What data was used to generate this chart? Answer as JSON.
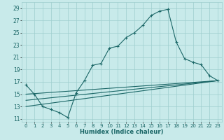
{
  "xlabel": "Humidex (Indice chaleur)",
  "bg_color": "#c8eaea",
  "grid_color": "#9ecece",
  "line_color": "#1a6666",
  "xlim": [
    -0.5,
    23.5
  ],
  "ylim": [
    10.5,
    30
  ],
  "xtick_labels": [
    "0",
    "1",
    "2",
    "3",
    "4",
    "5",
    "6",
    "7",
    "8",
    "9",
    "10",
    "11",
    "12",
    "13",
    "14",
    "15",
    "16",
    "17",
    "18",
    "19",
    "20",
    "21",
    "22",
    "23"
  ],
  "xtick_vals": [
    0,
    1,
    2,
    3,
    4,
    5,
    6,
    7,
    8,
    9,
    10,
    11,
    12,
    13,
    14,
    15,
    16,
    17,
    18,
    19,
    20,
    21,
    22,
    23
  ],
  "ytick_vals": [
    11,
    13,
    15,
    17,
    19,
    21,
    23,
    25,
    27,
    29
  ],
  "line1_x": [
    0,
    1,
    2,
    3,
    4,
    5,
    6,
    7,
    8,
    9,
    10,
    11,
    12,
    13,
    14,
    15,
    16,
    17,
    18,
    19,
    20,
    21,
    22,
    23
  ],
  "line1_y": [
    16.5,
    15.0,
    13.0,
    12.5,
    12.0,
    11.2,
    15.2,
    17.2,
    19.7,
    20.0,
    22.5,
    22.8,
    24.2,
    25.0,
    26.2,
    27.8,
    28.5,
    28.8,
    23.5,
    20.8,
    20.2,
    19.8,
    18.0,
    17.2
  ],
  "line2_x": [
    0,
    23
  ],
  "line2_y": [
    15.0,
    17.2
  ],
  "line3_x": [
    0,
    23
  ],
  "line3_y": [
    14.0,
    17.2
  ],
  "line4_x": [
    0,
    23
  ],
  "line4_y": [
    13.0,
    17.2
  ]
}
